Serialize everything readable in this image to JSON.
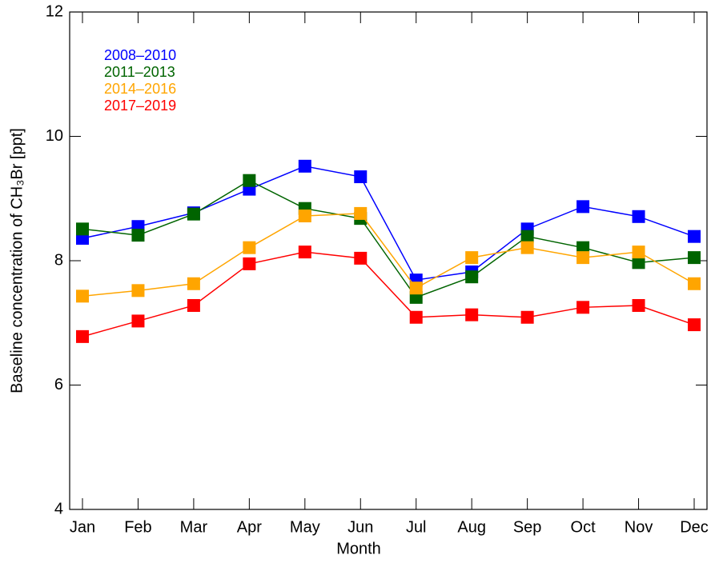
{
  "chart_data": {
    "type": "line",
    "xlabel": "Month",
    "ylabel": "Baseline concentration of CH₃Br [ppt]",
    "categories": [
      "Jan",
      "Feb",
      "Mar",
      "Apr",
      "May",
      "Jun",
      "Jul",
      "Aug",
      "Sep",
      "Oct",
      "Nov",
      "Dec"
    ],
    "ylim": [
      4,
      12
    ],
    "yticks": [
      4,
      6,
      8,
      10,
      12
    ],
    "legend": "upper left",
    "series": [
      {
        "name": "2008–2010",
        "color": "#0000ff",
        "values": [
          8.36,
          8.55,
          8.77,
          9.15,
          9.52,
          9.35,
          7.69,
          7.82,
          8.51,
          8.87,
          8.71,
          8.39
        ]
      },
      {
        "name": "2011–2013",
        "color": "#006400",
        "values": [
          8.51,
          8.41,
          8.75,
          9.29,
          8.84,
          8.68,
          7.41,
          7.74,
          8.39,
          8.21,
          7.97,
          8.05
        ]
      },
      {
        "name": "2014–2016",
        "color": "#ffa500",
        "values": [
          7.43,
          7.52,
          7.63,
          8.21,
          8.72,
          8.76,
          7.56,
          8.05,
          8.21,
          8.05,
          8.14,
          7.63
        ]
      },
      {
        "name": "2017–2019",
        "color": "#ff0000",
        "values": [
          6.78,
          7.03,
          7.28,
          7.95,
          8.14,
          8.04,
          7.09,
          7.13,
          7.09,
          7.25,
          7.28,
          6.97
        ]
      }
    ]
  }
}
